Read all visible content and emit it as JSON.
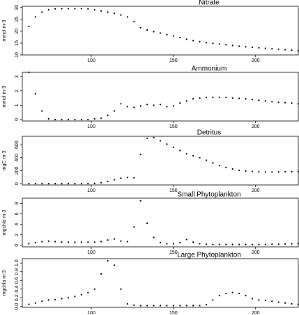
{
  "chart_data": [
    {
      "type": "scatter",
      "title": "Nitrate",
      "y_label": "mmol m-3",
      "color": "#000000",
      "x": [
        62,
        66,
        70,
        74,
        78,
        82,
        86,
        90,
        94,
        98,
        102,
        106,
        110,
        114,
        118,
        122,
        126,
        130,
        134,
        138,
        142,
        146,
        150,
        154,
        158,
        162,
        166,
        170,
        174,
        178,
        182,
        186,
        190,
        194,
        198,
        202,
        206,
        210,
        214,
        218,
        222,
        226
      ],
      "values": [
        22,
        26,
        28,
        29,
        29.4,
        29.5,
        29.5,
        29.5,
        29.5,
        29.4,
        29,
        28.5,
        28,
        27.5,
        26.8,
        26,
        24,
        21.5,
        20.5,
        19.8,
        19.2,
        18.6,
        18,
        17.3,
        16.6,
        16,
        15.6,
        15.2,
        14.9,
        14.6,
        14.3,
        14,
        13.7,
        13.4,
        13.2,
        13,
        12.8,
        12.6,
        12.4,
        12.2,
        12,
        11.8
      ],
      "xlim": [
        58,
        226
      ],
      "ylim": [
        10,
        30.5
      ],
      "xticks": [
        100,
        150,
        200
      ],
      "yticks": [
        10,
        15,
        20,
        25,
        30
      ]
    },
    {
      "type": "scatter",
      "title": "Ammonium",
      "y_label": "mmol m-3",
      "color": "#000000",
      "x": [
        62,
        66,
        70,
        74,
        78,
        82,
        86,
        90,
        94,
        98,
        102,
        106,
        110,
        114,
        118,
        122,
        126,
        130,
        134,
        138,
        142,
        146,
        150,
        154,
        158,
        162,
        166,
        170,
        174,
        178,
        182,
        186,
        190,
        194,
        198,
        202,
        206,
        210,
        214,
        218,
        222,
        226
      ],
      "values": [
        3.3,
        1.8,
        0.6,
        0.05,
        0,
        0,
        0,
        0,
        0,
        0,
        0.05,
        0.1,
        0.3,
        0.6,
        1.1,
        0.9,
        0.85,
        0.95,
        1.05,
        1.0,
        1.05,
        0.9,
        0.95,
        1.15,
        1.3,
        1.45,
        1.5,
        1.55,
        1.55,
        1.55,
        1.55,
        1.5,
        1.48,
        1.45,
        1.4,
        1.35,
        1.3,
        1.25,
        1.2,
        1.18,
        1.15,
        1.1
      ],
      "xlim": [
        58,
        226
      ],
      "ylim": [
        -0.1,
        3.3
      ],
      "xticks": [
        100,
        150,
        200
      ],
      "yticks": [
        0,
        1,
        2,
        3
      ]
    },
    {
      "type": "scatter",
      "title": "Detritus",
      "y_label": "mgC m-3",
      "color": "#000000",
      "x": [
        62,
        66,
        70,
        74,
        78,
        82,
        86,
        90,
        94,
        98,
        102,
        106,
        110,
        114,
        118,
        122,
        126,
        130,
        134,
        138,
        142,
        146,
        150,
        154,
        158,
        162,
        166,
        170,
        174,
        178,
        182,
        186,
        190,
        194,
        198,
        202,
        206,
        210,
        214,
        218,
        222,
        226
      ],
      "values": [
        0,
        0,
        0,
        0,
        0,
        0,
        0,
        0,
        0,
        0,
        5,
        15,
        35,
        60,
        85,
        95,
        90,
        450,
        700,
        710,
        660,
        610,
        560,
        510,
        460,
        430,
        400,
        360,
        320,
        280,
        250,
        225,
        205,
        195,
        188,
        183,
        180,
        180,
        182,
        184,
        185,
        186
      ],
      "xlim": [
        58,
        226
      ],
      "ylim": [
        -20,
        730
      ],
      "xticks": [
        100,
        150,
        200
      ],
      "yticks": [
        0,
        200,
        400,
        600
      ]
    },
    {
      "type": "scatter",
      "title": "Small Phytoplankton",
      "y_label": "mgchla m-3",
      "color": "#000000",
      "x": [
        62,
        66,
        70,
        74,
        78,
        82,
        86,
        90,
        94,
        98,
        102,
        106,
        110,
        114,
        118,
        122,
        126,
        130,
        134,
        138,
        142,
        146,
        150,
        154,
        158,
        162,
        166,
        170,
        174,
        178,
        182,
        186,
        190,
        194,
        198,
        202,
        206,
        210,
        214,
        218,
        222,
        226
      ],
      "values": [
        0.3,
        0.5,
        0.7,
        0.8,
        0.7,
        0.6,
        0.6,
        0.6,
        0.6,
        0.6,
        0.6,
        0.7,
        1.0,
        1.2,
        0.8,
        0.7,
        3.5,
        8.5,
        4.2,
        1.5,
        0.5,
        0.3,
        0.3,
        0.5,
        1.1,
        0.6,
        0.3,
        0.2,
        0.15,
        0.15,
        0.15,
        0.15,
        0.15,
        0.15,
        0.15,
        0.15,
        0.15,
        0.2,
        0.2,
        0.25,
        0.3,
        0.3
      ],
      "xlim": [
        58,
        226
      ],
      "ylim": [
        -0.3,
        9
      ],
      "xticks": [
        100,
        150,
        200
      ],
      "yticks": [
        0,
        2,
        4,
        6,
        8
      ]
    },
    {
      "type": "scatter",
      "title": "Large Phytoplankton",
      "y_label": "mgchla m-3",
      "color": "#000000",
      "x": [
        62,
        66,
        70,
        74,
        78,
        82,
        86,
        90,
        94,
        98,
        102,
        106,
        110,
        114,
        118,
        122,
        126,
        130,
        134,
        138,
        142,
        146,
        150,
        154,
        158,
        162,
        166,
        170,
        174,
        178,
        182,
        186,
        190,
        194,
        198,
        202,
        206,
        210,
        214,
        218,
        222,
        226
      ],
      "values": [
        0.05,
        0.08,
        0.12,
        0.15,
        0.16,
        0.18,
        0.2,
        0.23,
        0.27,
        0.32,
        0.4,
        0.75,
        1.05,
        0.95,
        0.4,
        0.06,
        0.03,
        0.02,
        0.02,
        0.02,
        0.02,
        0.02,
        0.02,
        0.02,
        0.02,
        0.02,
        0.02,
        0.04,
        0.15,
        0.25,
        0.3,
        0.32,
        0.3,
        0.25,
        0.18,
        0.15,
        0.14,
        0.12,
        0.1,
        0.08,
        0.06,
        0.05
      ],
      "xlim": [
        58,
        226
      ],
      "ylim": [
        -0.02,
        1.1
      ],
      "xticks": [
        100,
        150,
        200
      ],
      "yticks": [
        {
          "value": 0,
          "label": "0.0"
        },
        {
          "value": 0.2,
          "label": "0.2"
        },
        {
          "value": 0.4,
          "label": "0.4"
        },
        {
          "value": 0.6,
          "label": "0.6"
        },
        {
          "value": 0.8,
          "label": "0.8"
        },
        {
          "value": 1.0,
          "label": "1.0"
        }
      ]
    }
  ]
}
